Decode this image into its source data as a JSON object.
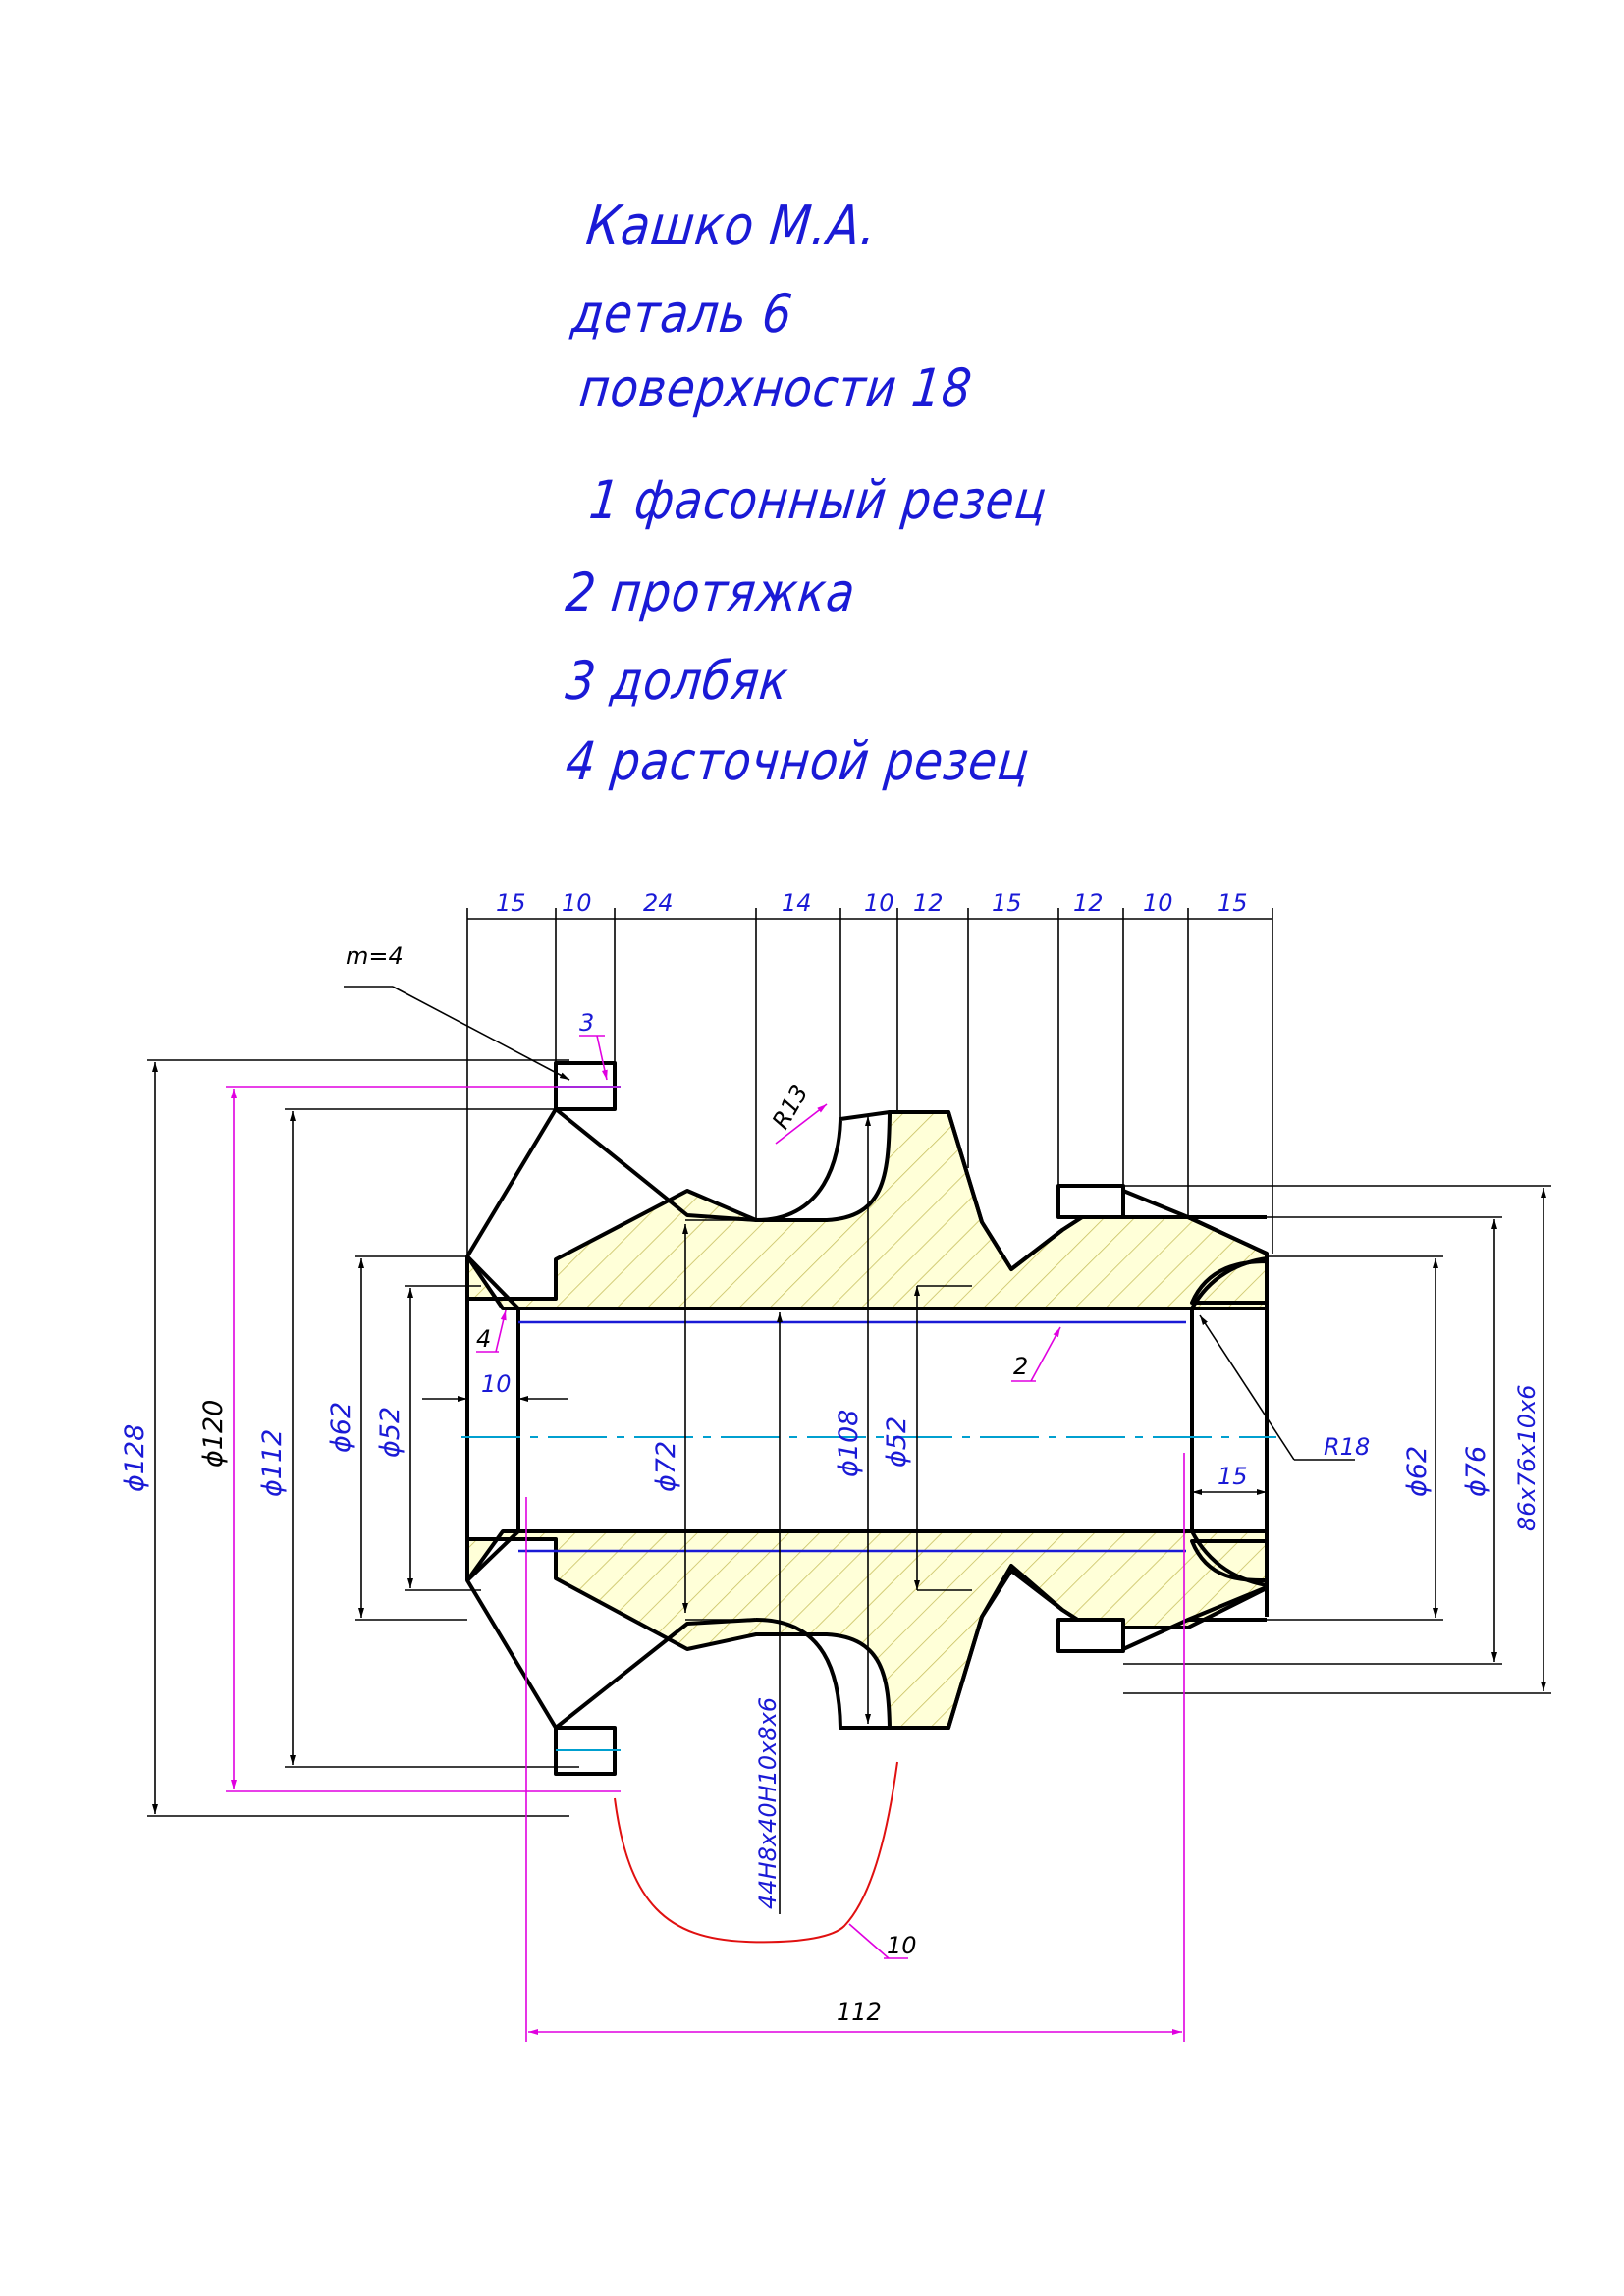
{
  "colors": {
    "outline": "#000000",
    "dimension": "#1a1ad6",
    "magenta": "#e000e0",
    "centerline": "#00a0d0",
    "hatch_fill": "#ffffd8",
    "hatch_lines": "#c8c060",
    "red_leader": "#e01010"
  },
  "notes": {
    "author": "Кашко М.А.",
    "detail": "деталь 6",
    "surfaces": "поверхности 18",
    "tools": [
      "1 фасонный резец",
      "2 протяжка",
      "3 долбяк",
      "4 расточной резец"
    ]
  },
  "drawing": {
    "top_dims": [
      "15",
      "10",
      "24",
      "14",
      "10",
      "12",
      "15",
      "12",
      "10",
      "15"
    ],
    "module_label": "m=4",
    "callouts": {
      "dolbyak": "3",
      "broach": "2",
      "boring": "4",
      "shaped": "10"
    },
    "radius_r13": "R13",
    "radius_r18": "R18",
    "dim_10": "10",
    "dim_15": "15",
    "dim_112": "112",
    "diameters_left": {
      "d128": "ϕ128",
      "d120": "ϕ120",
      "d112": "ϕ112",
      "d62": "ϕ62",
      "d52": "ϕ52"
    },
    "diameters_center": {
      "d72": "ϕ72",
      "d108": "ϕ108",
      "d52": "ϕ52"
    },
    "diameters_right": {
      "d62": "ϕ62",
      "d76": "ϕ76"
    },
    "spline_right": "86x76x10x6",
    "spline_bore": "44H8x40H10x8x6"
  }
}
